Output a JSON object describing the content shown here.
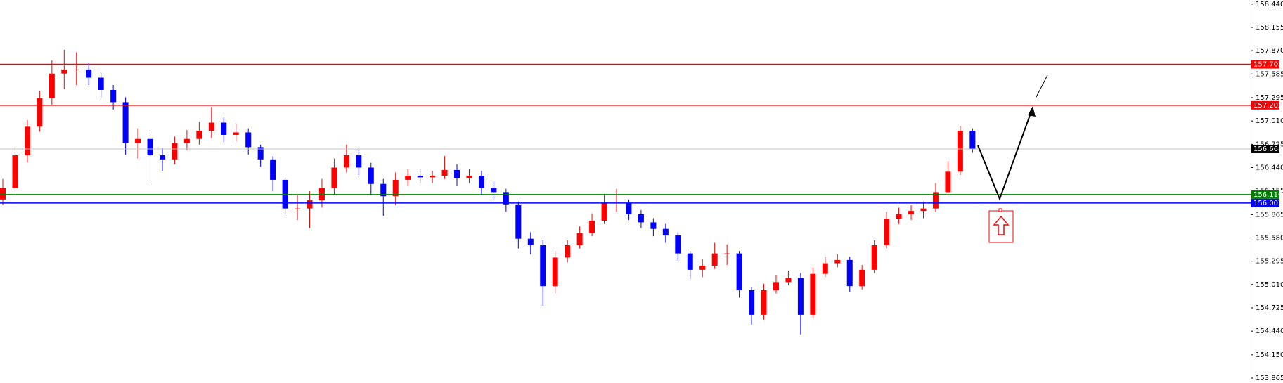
{
  "chart_data": {
    "type": "candlestick",
    "open": [
      156.05,
      156.19,
      156.59,
      156.94,
      157.29,
      157.59,
      157.64,
      157.64,
      157.54,
      157.39,
      157.24,
      156.74,
      156.79,
      156.59,
      156.54,
      156.74,
      156.79,
      156.89,
      156.99,
      156.84,
      156.87,
      156.69,
      156.54,
      156.29,
      155.94,
      155.94,
      156.04,
      156.19,
      156.44,
      156.59,
      156.44,
      156.24,
      156.09,
      156.29,
      156.34,
      156.32,
      156.34,
      156.41,
      156.31,
      156.34,
      156.19,
      156.14,
      155.99,
      155.57,
      155.49,
      154.99,
      155.34,
      155.49,
      155.64,
      155.79,
      156.01,
      156.01,
      155.87,
      155.77,
      155.69,
      155.61,
      155.39,
      155.19,
      155.24,
      155.39,
      155.39,
      154.94,
      154.64,
      154.94,
      155.04,
      155.09,
      154.64,
      155.14,
      155.27,
      155.31,
      154.99,
      155.19,
      155.49,
      155.81,
      155.87,
      155.91,
      155.94,
      156.14,
      156.39,
      156.89
    ],
    "high": [
      156.3,
      156.68,
      157.02,
      157.38,
      157.75,
      157.88,
      157.85,
      157.72,
      157.6,
      157.45,
      157.3,
      156.92,
      156.85,
      156.68,
      156.82,
      156.9,
      157.0,
      157.18,
      157.05,
      156.98,
      156.92,
      156.72,
      156.58,
      156.32,
      156.1,
      156.15,
      156.3,
      156.55,
      156.72,
      156.65,
      156.5,
      156.3,
      156.38,
      156.42,
      156.42,
      156.4,
      156.58,
      156.48,
      156.42,
      156.4,
      156.28,
      156.18,
      156.02,
      155.65,
      155.55,
      155.42,
      155.55,
      155.72,
      155.88,
      156.12,
      156.18,
      156.05,
      155.92,
      155.82,
      155.75,
      155.65,
      155.42,
      155.32,
      155.52,
      155.5,
      155.42,
      154.98,
      155.02,
      155.12,
      155.18,
      155.15,
      155.22,
      155.35,
      155.38,
      155.35,
      155.25,
      155.55,
      155.9,
      155.95,
      155.98,
      156.02,
      156.25,
      156.52,
      156.95,
      156.92
    ],
    "low": [
      155.98,
      156.12,
      156.5,
      156.88,
      157.2,
      157.4,
      157.45,
      157.45,
      157.3,
      157.15,
      156.6,
      156.55,
      156.25,
      156.4,
      156.48,
      156.65,
      156.72,
      156.8,
      156.75,
      156.76,
      156.6,
      156.45,
      156.15,
      155.85,
      155.8,
      155.7,
      155.95,
      156.1,
      156.38,
      156.35,
      156.1,
      155.85,
      155.98,
      156.22,
      156.25,
      156.25,
      156.3,
      156.22,
      156.25,
      156.1,
      156.05,
      155.9,
      155.45,
      155.38,
      154.75,
      154.9,
      155.28,
      155.45,
      155.6,
      155.75,
      155.9,
      155.8,
      155.7,
      155.6,
      155.52,
      155.3,
      155.08,
      155.1,
      155.2,
      155.25,
      154.85,
      154.52,
      154.58,
      154.9,
      155.0,
      154.4,
      154.6,
      155.1,
      155.22,
      154.92,
      154.95,
      155.15,
      155.45,
      155.75,
      155.8,
      155.82,
      155.9,
      156.1,
      156.35,
      156.62
    ],
    "close": [
      156.19,
      156.59,
      156.94,
      157.29,
      157.59,
      157.64,
      157.64,
      157.54,
      157.39,
      157.24,
      156.74,
      156.79,
      156.59,
      156.54,
      156.74,
      156.79,
      156.89,
      156.99,
      156.84,
      156.87,
      156.69,
      156.54,
      156.29,
      155.94,
      155.94,
      156.04,
      156.19,
      156.44,
      156.59,
      156.44,
      156.24,
      156.09,
      156.29,
      156.34,
      156.32,
      156.34,
      156.41,
      156.31,
      156.34,
      156.19,
      156.14,
      155.99,
      155.57,
      155.49,
      154.99,
      155.34,
      155.49,
      155.64,
      155.79,
      156.01,
      156.01,
      155.87,
      155.77,
      155.69,
      155.61,
      155.39,
      155.19,
      155.24,
      155.39,
      155.39,
      154.94,
      154.64,
      154.94,
      155.04,
      155.09,
      154.64,
      155.14,
      155.27,
      155.31,
      154.99,
      155.19,
      155.49,
      155.81,
      155.87,
      155.91,
      155.94,
      156.14,
      156.39,
      156.89,
      156.668
    ],
    "up_color": "#ff0000",
    "down_color": "#0000ff",
    "ylim": [
      153.805,
      158.49
    ],
    "yticks": [
      {
        "value": 158.44,
        "label": "158.440"
      },
      158.155,
      {
        "value": 157.87,
        "label": "157.870"
      },
      157.585,
      157.295,
      {
        "value": 157.01,
        "label": "157.010"
      },
      156.725,
      {
        "value": 156.44,
        "label": "156.440"
      },
      156.155,
      155.865,
      {
        "value": 155.58,
        "label": "155.580"
      },
      155.295,
      {
        "value": 155.01,
        "label": "155.010"
      },
      154.725,
      {
        "value": 154.44,
        "label": "154.440"
      },
      {
        "value": 154.15,
        "label": "154.150"
      },
      153.865
    ],
    "levels": [
      {
        "value": 157.703,
        "color": "#ff0000",
        "badge": "#ff0000"
      },
      {
        "value": 157.202,
        "color": "#ff0000",
        "badge": "#ff0000"
      },
      {
        "value": 156.668,
        "color": "#c0c0c0",
        "badge": "#000000"
      },
      {
        "value": 156.11,
        "label": "156.110",
        "color": "#008000",
        "badge": "#008000"
      },
      {
        "value": 156.007,
        "color": "#0000ff",
        "badge": "#0000ff"
      }
    ]
  }
}
